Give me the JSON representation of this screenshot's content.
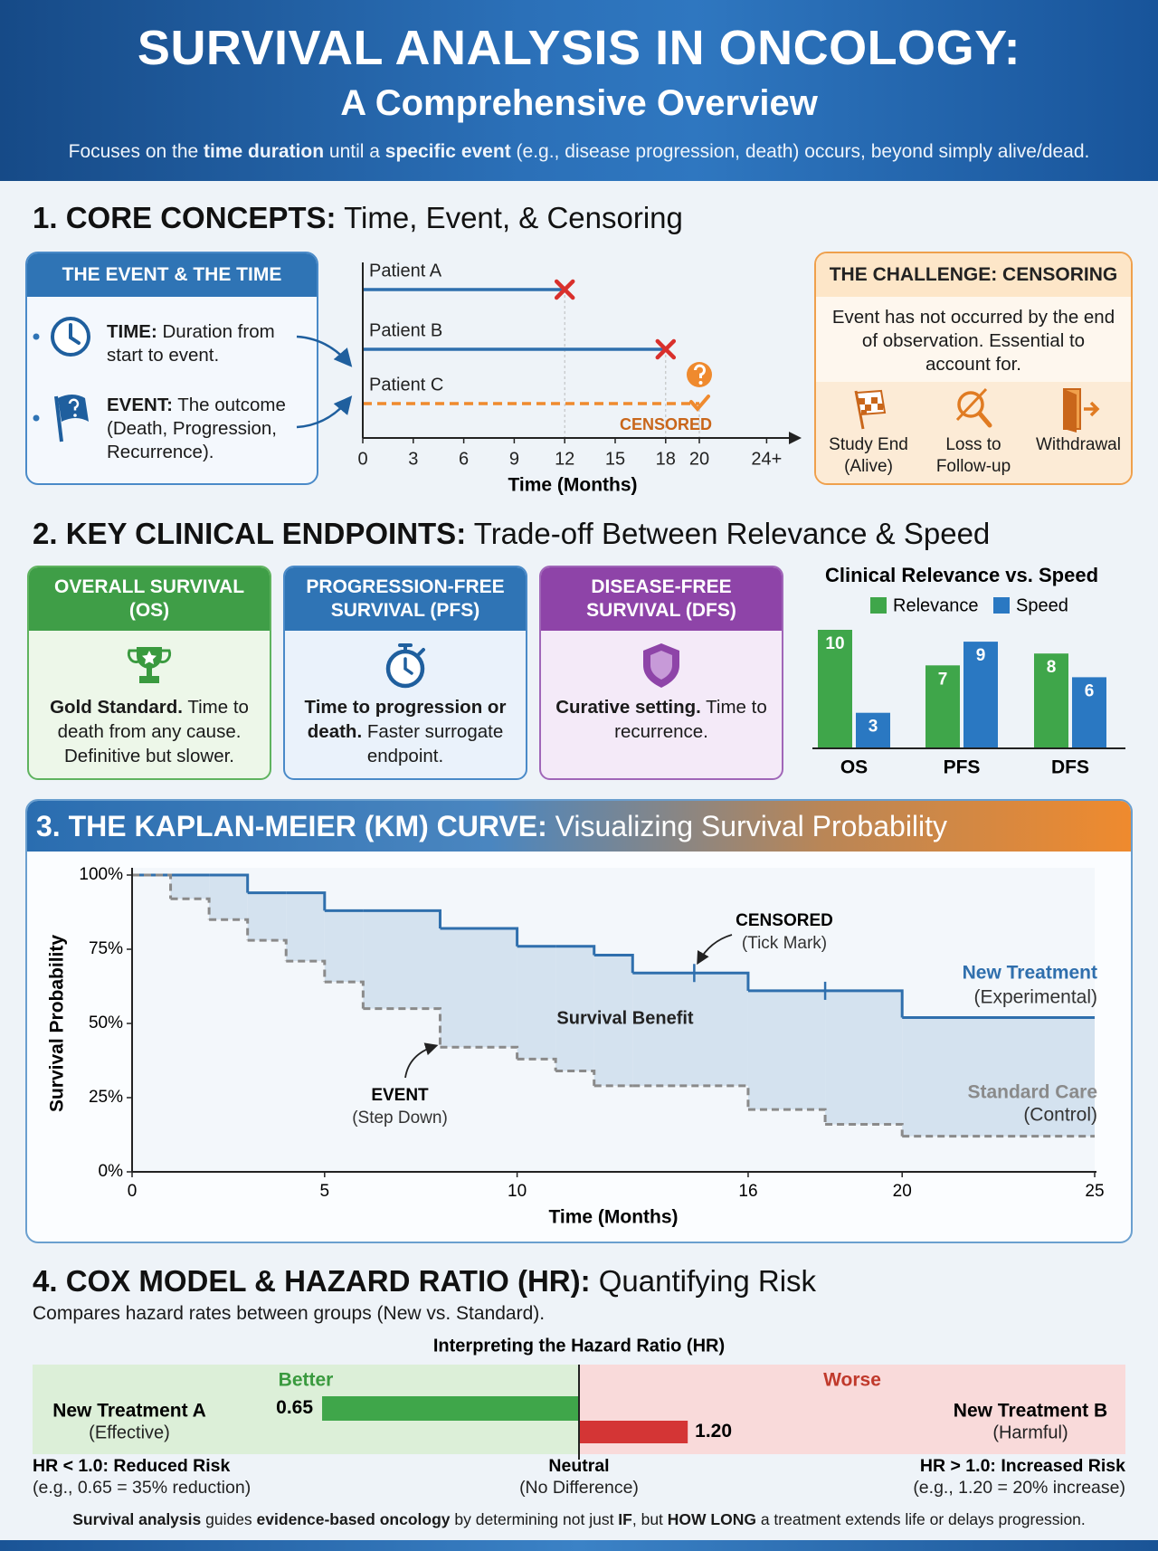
{
  "header": {
    "title": "SURVIVAL ANALYSIS IN ONCOLOGY:",
    "subtitle": "A Comprehensive Overview",
    "description": [
      "Focuses on the ",
      "time duration",
      " until a ",
      "specific event",
      " (e.g., disease progression, death) occurs, beyond simply alive/dead."
    ]
  },
  "section1": {
    "heading": [
      "1. CORE CONCEPTS:",
      " Time, Event, & Censoring"
    ],
    "event_box": {
      "title": "THE EVENT & THE TIME",
      "items": [
        {
          "label": "TIME:",
          "text": " Duration from start to event."
        },
        {
          "label": "EVENT:",
          "text": " The outcome (Death, Progression, Recurrence)."
        }
      ]
    },
    "timeline": {
      "type": "timeline",
      "categories": [
        "Patient A",
        "Patient B",
        "Patient C"
      ],
      "values": [
        12,
        18,
        20
      ],
      "colors": [
        "#2f6fad",
        "#2f6fad",
        "#ef8a2e"
      ],
      "censored": [
        false,
        false,
        true
      ],
      "censored_label": "CENSORED",
      "event_color": "#d9302c",
      "xlabel": "Time (Months)",
      "xlim": [
        0,
        25
      ],
      "xticks": [
        0,
        3,
        6,
        9,
        12,
        15,
        18,
        20,
        {
          "value": 24,
          "label": "24+"
        }
      ]
    },
    "censoring_box": {
      "title": "THE CHALLENGE: CENSORING",
      "text": "Event has not occurred by the end of observation. Essential to account for.",
      "reasons": [
        "Study End (Alive)",
        "Loss to Follow-up",
        "Withdrawal"
      ]
    }
  },
  "section2": {
    "heading": [
      "2. KEY CLINICAL ENDPOINTS:",
      " Trade-off Between Relevance & Speed"
    ],
    "endpoints": [
      {
        "title": "OVERALL SURVIVAL (OS)",
        "highlight": "Gold Standard.",
        "text": " Time to death from any cause. Definitive but slower."
      },
      {
        "title": "PROGRESSION-FREE SURVIVAL (PFS)",
        "highlight": "Time to progression or death.",
        "text": " Faster surrogate endpoint."
      },
      {
        "title": "DISEASE-FREE SURVIVAL (DFS)",
        "highlight": "Curative setting.",
        "text": " Time to recurrence."
      }
    ],
    "chart": {
      "type": "bar",
      "title": "Clinical Relevance vs. Speed",
      "categories": [
        "OS",
        "PFS",
        "DFS"
      ],
      "series": [
        {
          "name": "Relevance",
          "color": "#3fa64a",
          "values": [
            10,
            7,
            8
          ]
        },
        {
          "name": "Speed",
          "color": "#2a78c2",
          "values": [
            3,
            9,
            6
          ]
        }
      ],
      "ylim": [
        0,
        10
      ]
    }
  },
  "section3": {
    "heading": [
      "3. THE KAPLAN-MEIER (KM) CURVE:",
      " Visualizing Survival Probability"
    ],
    "chart": {
      "type": "step",
      "xlabel": "Time (Months)",
      "ylabel": "Survival Probability",
      "x": [
        0,
        1,
        2,
        3,
        4,
        5,
        6,
        8,
        10,
        11,
        12,
        13,
        16,
        18,
        20
      ],
      "series": [
        {
          "name": "New Treatment",
          "note": "(Experimental)",
          "color": "#2f6fad",
          "dashed": false,
          "values": [
            100,
            100,
            100,
            94,
            94,
            88,
            88,
            82,
            76,
            76,
            73,
            67,
            61,
            61,
            52
          ]
        },
        {
          "name": "Standard Care",
          "note": "(Control)",
          "color": "#8a8a8a",
          "dashed": true,
          "values": [
            100,
            92,
            85,
            78,
            71,
            64,
            55,
            42,
            38,
            34,
            29,
            29,
            21,
            16,
            12
          ]
        }
      ],
      "censored": {
        "x": [
          14.6,
          18
        ],
        "values": [
          67,
          61
        ]
      },
      "area_label": "Survival Benefit",
      "annotations": [
        {
          "title": "CENSORED",
          "text": "(Tick Mark)"
        },
        {
          "title": "EVENT",
          "text": "(Step Down)"
        }
      ],
      "xlim": [
        0,
        25
      ],
      "xticks": [
        0,
        5,
        10,
        16,
        20,
        25
      ],
      "ylim": [
        0,
        100
      ],
      "yticks": [
        {
          "value": 0,
          "label": "0%"
        },
        {
          "value": 25,
          "label": "25%"
        },
        {
          "value": 50,
          "label": "50%"
        },
        {
          "value": 75,
          "label": "75%"
        },
        {
          "value": 100,
          "label": "100%"
        }
      ]
    }
  },
  "section4": {
    "heading": [
      "4. COX MODEL & HAZARD RATIO (HR):",
      " Quantifying Risk"
    ],
    "description": "Compares hazard rates between groups (New vs. Standard).",
    "chart": {
      "type": "hazard-ratio",
      "title": "Interpreting the Hazard Ratio (HR)",
      "log_scale": true,
      "xlim": [
        0.4,
        2.5
      ],
      "reference_line": 1,
      "regions": [
        "Better",
        "Worse"
      ],
      "series": [
        {
          "name": "New Treatment A",
          "note": "(Effective)",
          "color": "#3fa64a",
          "values": [
            0.65
          ]
        },
        {
          "name": "New Treatment B",
          "note": "(Harmful)",
          "color": "#d43535",
          "values": [
            1.2
          ],
          "value_labels": [
            "1.20"
          ]
        }
      ],
      "notes": [
        {
          "title": "HR < 1.0: Reduced Risk",
          "text": "(e.g., 0.65 = 35% reduction)"
        },
        {
          "title": "Neutral",
          "text": "(No Difference)"
        },
        {
          "title": "HR > 1.0: Increased Risk",
          "text": "(e.g., 1.20 = 20% increase)"
        }
      ]
    }
  },
  "footer": [
    "Survival analysis",
    " guides ",
    "evidence-based oncology",
    " by determining not just ",
    "IF",
    ", but ",
    "HOW LONG",
    " a treatment extends life or delays progression."
  ]
}
